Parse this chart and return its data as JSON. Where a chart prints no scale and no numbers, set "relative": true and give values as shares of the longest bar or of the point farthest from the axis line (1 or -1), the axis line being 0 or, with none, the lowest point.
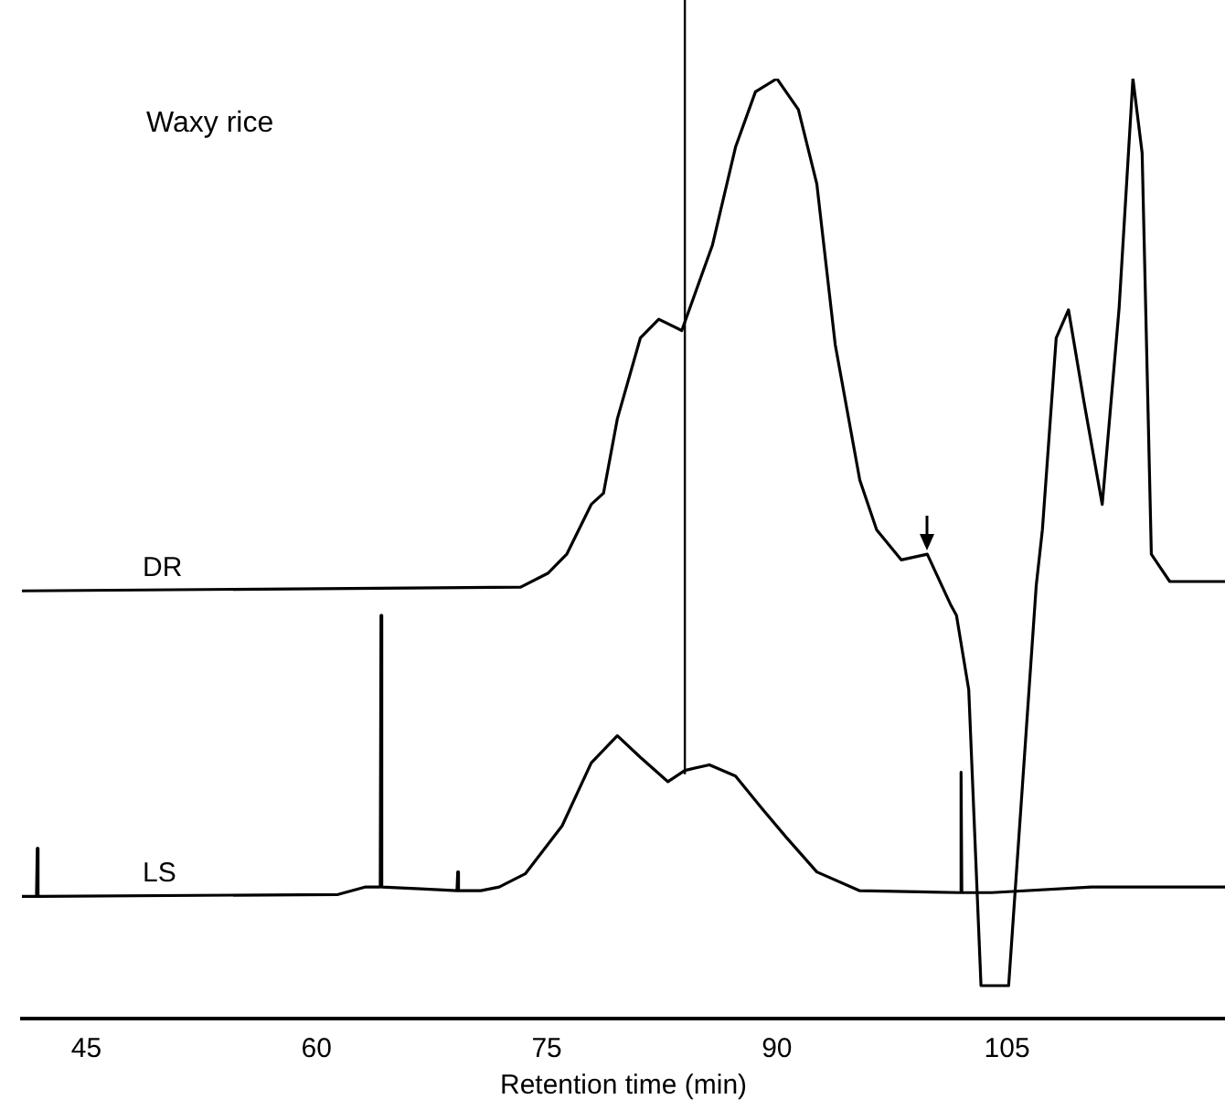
{
  "chart_data": {
    "type": "line",
    "title": "Waxy rice",
    "xlabel": "Retention time (min)",
    "relative": true,
    "xlim": [
      40.8,
      119.2
    ],
    "xticks": [
      45,
      60,
      75,
      90,
      105
    ],
    "grid": false,
    "legend": false,
    "marker": "none",
    "line_style": "solid",
    "ref_lines": [
      {
        "axis": "x",
        "value": 84,
        "color": "#000000"
      }
    ],
    "series": [
      {
        "name": "DR",
        "color": "#000000",
        "x": [
          40.8,
          73.3,
          75.1,
          76.3,
          77.9,
          78.7,
          79.6,
          81.1,
          82.3,
          83.8,
          85.8,
          87.3,
          88.6,
          90.0,
          91.4,
          92.6,
          93.8,
          95.4,
          96.5,
          98.1,
          99.8,
          101.3,
          101.7,
          102.5,
          103.3,
          105.1,
          106.9,
          107.3,
          108.2,
          109.0,
          110.0,
          111.2,
          112.3,
          113.2,
          113.8,
          114.4,
          115.6,
          119.2
        ],
        "values": [
          0.455,
          0.459,
          0.474,
          0.494,
          0.547,
          0.559,
          0.638,
          0.724,
          0.744,
          0.732,
          0.823,
          0.927,
          0.986,
          1.0,
          0.967,
          0.888,
          0.717,
          0.573,
          0.52,
          0.488,
          0.494,
          0.441,
          0.429,
          0.35,
          0.035,
          0.035,
          0.461,
          0.52,
          0.724,
          0.754,
          0.657,
          0.547,
          0.756,
          1.0,
          0.921,
          0.494,
          0.465,
          0.465
        ]
      },
      {
        "name": "LS",
        "color": "#000000",
        "x": [
          40.8,
          41.75,
          41.8,
          41.85,
          61.4,
          63.2,
          64.15,
          64.2,
          64.25,
          66.8,
          69.15,
          69.2,
          69.25,
          70.7,
          71.9,
          73.6,
          76.0,
          77.9,
          79.6,
          81.1,
          82.9,
          84.0,
          85.6,
          87.3,
          89.0,
          90.6,
          92.6,
          95.4,
          101.9,
          101.95,
          102.0,
          102.05,
          104.0,
          110.5,
          119.2
        ],
        "values": [
          0.13,
          0.13,
          0.181,
          0.13,
          0.132,
          0.14,
          0.14,
          0.429,
          0.14,
          0.138,
          0.136,
          0.156,
          0.136,
          0.136,
          0.14,
          0.154,
          0.205,
          0.272,
          0.301,
          0.278,
          0.252,
          0.264,
          0.27,
          0.258,
          0.224,
          0.193,
          0.156,
          0.136,
          0.134,
          0.134,
          0.262,
          0.134,
          0.134,
          0.14,
          0.14
        ]
      }
    ]
  }
}
